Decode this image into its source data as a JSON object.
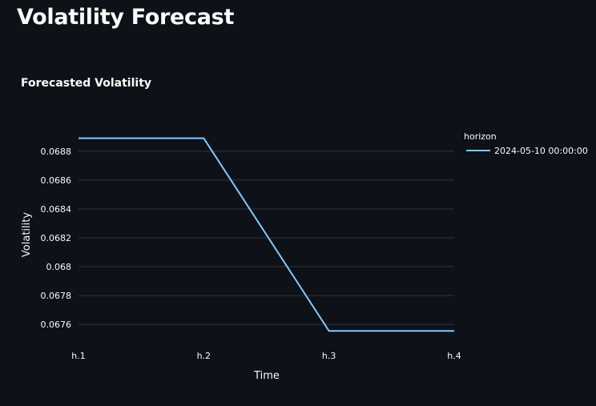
{
  "page": {
    "title": "Volatility Forecast"
  },
  "chart_data": {
    "type": "line",
    "title": "Forecasted Volatility",
    "xlabel": "Time",
    "ylabel": "Volatility",
    "categories": [
      "h.1",
      "h.2",
      "h.3",
      "h.4"
    ],
    "series": [
      {
        "name": "2024-05-10 00:00:00",
        "values": [
          0.06889,
          0.06889,
          0.067555,
          0.067555
        ],
        "color": "#83c9ff"
      }
    ],
    "yticks": [
      "0.0676",
      "0.0678",
      "0.068",
      "0.0682",
      "0.0684",
      "0.0686",
      "0.0688"
    ],
    "ylim": [
      0.06749,
      0.06896
    ],
    "grid": true,
    "legend": {
      "title": "horizon",
      "placement": "right"
    }
  }
}
